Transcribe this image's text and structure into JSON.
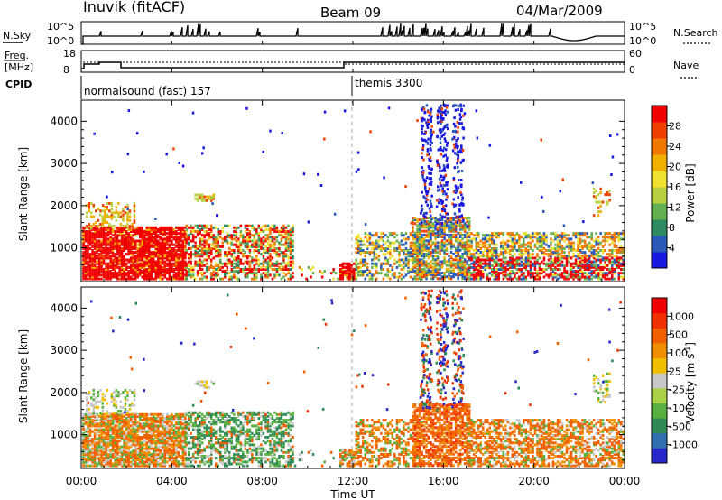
{
  "header": {
    "station": "Inuvik (fitACF)",
    "beam": "Beam 09",
    "date": "04/Mar/2009"
  },
  "top_panels": {
    "nsky": {
      "label": "N.Sky",
      "yticks": [
        "10^5",
        "10^0"
      ],
      "right_label": "N.Search",
      "right_yticks": [
        "10^5",
        "10^0"
      ]
    },
    "freq": {
      "label_line1": "Freq.",
      "label_line2": "[MHz]",
      "yticks": [
        "18",
        "8"
      ],
      "right_label": "Nave",
      "right_yticks": [
        "60",
        "0"
      ]
    },
    "cpid": {
      "label": "CPID",
      "modes": [
        {
          "name": "normalsound (fast) 157",
          "start_hour": 0
        },
        {
          "name": "themis 3300",
          "start_hour": 12
        }
      ]
    }
  },
  "chart_data": [
    {
      "type": "heatmap",
      "title": "",
      "ylabel": "Slant Range [km]",
      "xlabel": "",
      "xlim_hours": [
        0,
        24
      ],
      "ylim": [
        200,
        4500
      ],
      "yticks": [
        1000,
        2000,
        3000,
        4000
      ],
      "colorbar": {
        "label": "Power [dB]",
        "ticks": [
          "28",
          "24",
          "20",
          "16",
          "12",
          "8",
          "4"
        ],
        "colors": [
          "#1818e0",
          "#2a5ab8",
          "#2e8a60",
          "#64b050",
          "#b8d040",
          "#f0e030",
          "#f0b000",
          "#f07800",
          "#f04000",
          "#f00000"
        ]
      }
    },
    {
      "type": "heatmap",
      "title": "",
      "ylabel": "Slant Range [km]",
      "xlabel": "Time UT",
      "xlim_hours": [
        0,
        24
      ],
      "ylim": [
        200,
        4500
      ],
      "yticks": [
        1000,
        2000,
        3000,
        4000
      ],
      "xticks": [
        "00:00",
        "04:00",
        "08:00",
        "12:00",
        "16:00",
        "20:00",
        "00:00"
      ],
      "colorbar": {
        "label": "Velocity [m s",
        "label_sup": "-1",
        "label_end": "]",
        "ticks": [
          "1000",
          "500",
          "100",
          "25",
          "-25",
          "-100",
          "-500",
          "-1000"
        ],
        "colors": [
          "#2828c8",
          "#3070b0",
          "#308a58",
          "#58b040",
          "#a8d048",
          "#c8c8c8",
          "#f0c000",
          "#f09000",
          "#f06000",
          "#f03000",
          "#f00000"
        ]
      }
    }
  ]
}
